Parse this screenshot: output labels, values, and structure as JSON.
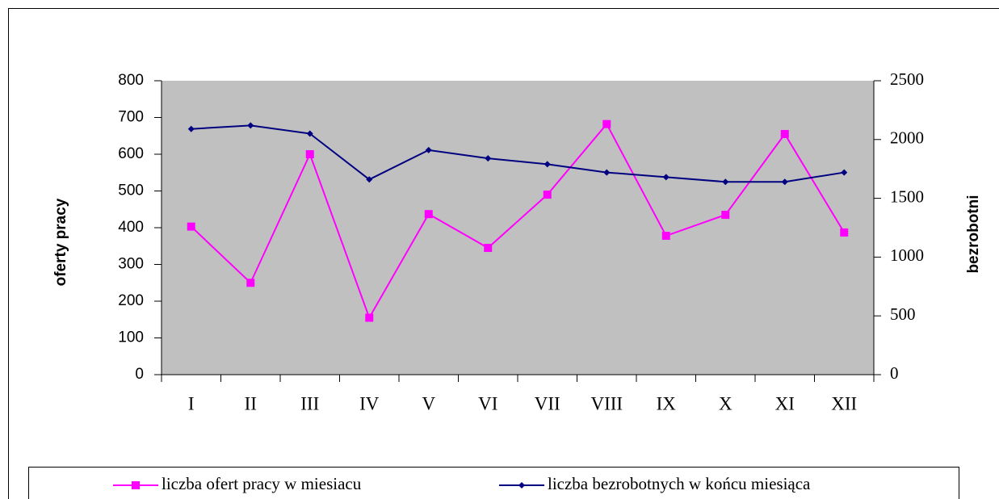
{
  "chart_data": {
    "type": "line",
    "categories": [
      "I",
      "II",
      "III",
      "IV",
      "V",
      "VI",
      "VII",
      "VIII",
      "IX",
      "X",
      "XI",
      "XII"
    ],
    "series": [
      {
        "name": "liczba ofert pracy w miesiacu",
        "color": "#ff00ff",
        "values": [
          403,
          250,
          600,
          155,
          437,
          345,
          490,
          682,
          378,
          435,
          655,
          387
        ]
      },
      {
        "name": "liczba bezrobotnych w końcu miesiąca",
        "color": "#000080",
        "axis": "y2",
        "values": [
          2090,
          2120,
          2050,
          1660,
          1910,
          1840,
          1790,
          1720,
          1680,
          1640,
          1640,
          1720
        ]
      }
    ],
    "ylabel": "oferty pracy",
    "y2label": "bezrobotni",
    "ylim": [
      0,
      800
    ],
    "yticks": [
      0,
      100,
      200,
      300,
      400,
      500,
      600,
      700,
      800
    ],
    "y2lim": [
      0,
      2500
    ],
    "y2ticks": [
      0,
      500,
      1000,
      1500,
      2000,
      2500
    ],
    "background": "#c0c0c0",
    "legend": "bottom"
  }
}
